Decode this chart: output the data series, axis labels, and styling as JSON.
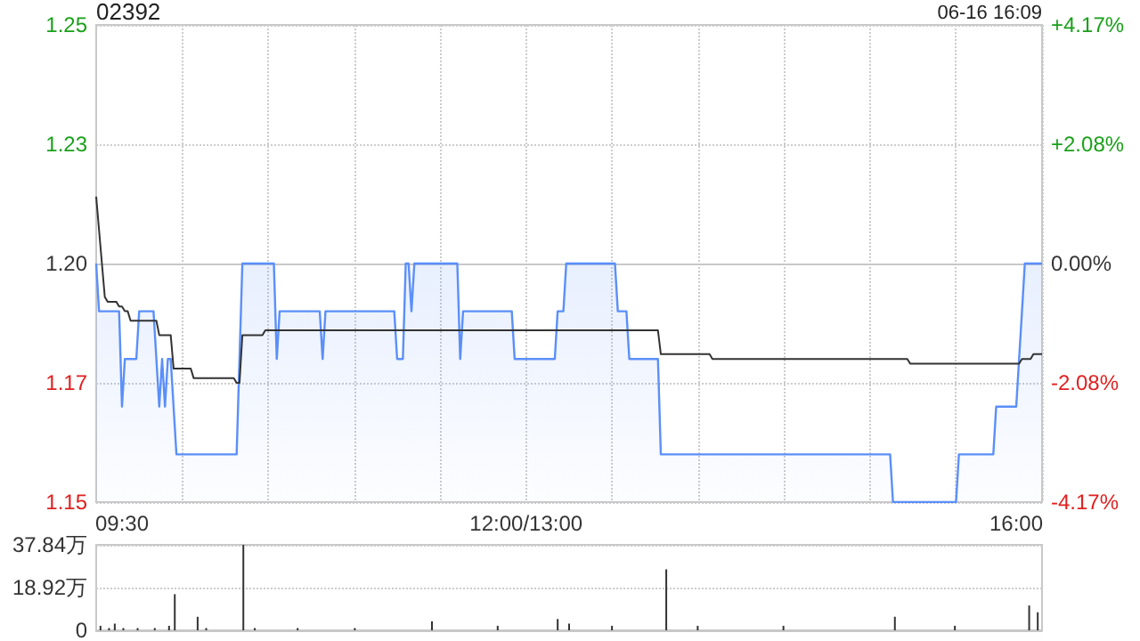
{
  "chart_data": [
    {
      "type": "area",
      "title": "02392",
      "annotations": [
        "06-16 16:09"
      ],
      "categories": [
        null,
        null,
        null,
        null,
        null,
        null,
        null,
        null,
        null,
        "09:30",
        null,
        null,
        null,
        null,
        null,
        null,
        null,
        null,
        null,
        null,
        null,
        null,
        null,
        null,
        null,
        null,
        null,
        null,
        null,
        null,
        null,
        null,
        null,
        null,
        null,
        null,
        null,
        null,
        null,
        null,
        null,
        null,
        null,
        null,
        null,
        null,
        null,
        null,
        null,
        null,
        null,
        null,
        null,
        null,
        null,
        null,
        null,
        null,
        null,
        null,
        null,
        null,
        null,
        null,
        null,
        null,
        null,
        null,
        null,
        null,
        null,
        null,
        null,
        null,
        null,
        null,
        null,
        null,
        null,
        null,
        null,
        null,
        null,
        null,
        null,
        null,
        null,
        null,
        null,
        null,
        null,
        null,
        null,
        null,
        null,
        null,
        null,
        null,
        null,
        null,
        null,
        null,
        null,
        null,
        null,
        null,
        null,
        null,
        null,
        null,
        null,
        null,
        null,
        null,
        null,
        null,
        null,
        null,
        null,
        null,
        null,
        null,
        null,
        null,
        null,
        null,
        null,
        null,
        null,
        null,
        null,
        null,
        null,
        null,
        null,
        null,
        null,
        null,
        null,
        null,
        null,
        null,
        null,
        null,
        null,
        null,
        null,
        null,
        null,
        null,
        "12:00/13:00",
        null,
        null,
        null,
        null,
        null,
        null,
        null,
        null,
        null,
        null,
        null,
        null,
        null,
        null,
        null,
        null,
        null,
        null,
        null,
        null,
        null,
        null,
        null,
        null,
        null,
        null,
        null,
        null,
        null,
        null,
        null,
        null,
        null,
        null,
        null,
        null,
        null,
        null,
        null,
        null,
        null,
        null,
        null,
        null,
        null,
        null,
        null,
        null,
        null,
        null,
        null,
        null,
        null,
        null,
        null,
        null,
        null,
        null,
        null,
        null,
        null,
        null,
        null,
        null,
        null,
        null,
        null,
        null,
        null,
        null,
        null,
        null,
        null,
        null,
        null,
        null,
        null,
        null,
        null,
        null,
        null,
        null,
        null,
        null,
        null,
        null,
        null,
        null,
        null,
        null,
        null,
        null,
        null,
        null,
        null,
        null,
        null,
        null,
        null,
        null,
        null,
        null,
        null,
        null,
        null,
        null,
        null,
        null,
        null,
        null,
        null,
        null,
        null,
        null,
        null,
        null,
        null,
        null,
        null,
        null,
        null,
        null,
        null,
        null,
        null,
        null,
        null,
        null,
        null,
        null,
        null,
        null,
        null,
        null,
        null,
        null,
        null,
        null,
        null,
        null,
        null,
        null,
        null,
        null,
        null,
        null,
        null,
        null,
        null,
        null,
        null,
        null,
        null,
        null,
        null,
        null,
        null,
        null,
        null,
        null,
        null,
        null,
        null,
        null,
        null,
        null,
        null,
        null,
        null,
        null,
        "16:00",
        null,
        null,
        null,
        null,
        null,
        null,
        null,
        null,
        null
      ],
      "ylim": [
        1.15,
        1.25
      ],
      "yticks": [
        1.15,
        {
          "value": 1.175,
          "label": "1.17"
        },
        {
          "value": 1.2,
          "label": "1.20"
        },
        {
          "value": 1.225,
          "label": "1.23"
        },
        1.25
      ],
      "y2lim": [
        -4.17,
        4.17
      ],
      "y2ticks": [
        {
          "value": -4.17,
          "label": "-4.17%"
        },
        {
          "value": -2.08,
          "label": "-2.08%"
        },
        {
          "value": 0,
          "label": "0.00%"
        },
        {
          "value": 2.08,
          "label": "+2.08%"
        },
        {
          "value": 4.17,
          "label": "+4.17%"
        }
      ],
      "grid": true,
      "marker": "none",
      "series": [
        {
          "type": "area",
          "color": "#5b8ff9",
          "values": [
            1.2,
            1.19,
            1.19,
            1.19,
            1.19,
            1.19,
            1.19,
            1.19,
            1.19,
            1.17,
            1.18,
            1.18,
            1.18,
            1.18,
            1.18,
            1.19,
            1.19,
            1.19,
            1.19,
            1.19,
            1.19,
            1.18,
            1.17,
            1.18,
            1.17,
            1.18,
            1.18,
            1.17,
            1.16,
            1.16,
            1.16,
            1.16,
            1.16,
            1.16,
            1.16,
            1.16,
            1.16,
            1.16,
            1.16,
            1.16,
            1.16,
            1.16,
            1.16,
            1.16,
            1.16,
            1.16,
            1.16,
            1.16,
            1.16,
            1.16,
            1.18,
            1.2,
            1.2,
            1.2,
            1.2,
            1.2,
            1.2,
            1.2,
            1.2,
            1.2,
            1.2,
            1.2,
            1.2,
            1.18,
            1.19,
            1.19,
            1.19,
            1.19,
            1.19,
            1.19,
            1.19,
            1.19,
            1.19,
            1.19,
            1.19,
            1.19,
            1.19,
            1.19,
            1.19,
            1.18,
            1.19,
            1.19,
            1.19,
            1.19,
            1.19,
            1.19,
            1.19,
            1.19,
            1.19,
            1.19,
            1.19,
            1.19,
            1.19,
            1.19,
            1.19,
            1.19,
            1.19,
            1.19,
            1.19,
            1.19,
            1.19,
            1.19,
            1.19,
            1.19,
            1.19,
            1.18,
            1.18,
            1.18,
            1.2,
            1.2,
            1.19,
            1.2,
            1.2,
            1.2,
            1.2,
            1.2,
            1.2,
            1.2,
            1.2,
            1.2,
            1.2,
            1.2,
            1.2,
            1.2,
            1.2,
            1.2,
            1.2,
            1.18,
            1.19,
            1.19,
            1.19,
            1.19,
            1.19,
            1.19,
            1.19,
            1.19,
            1.19,
            1.19,
            1.19,
            1.19,
            1.19,
            1.19,
            1.19,
            1.19,
            1.19,
            1.19,
            1.18,
            1.18,
            1.18,
            1.18,
            1.18,
            1.18,
            1.18,
            1.18,
            1.18,
            1.18,
            1.18,
            1.18,
            1.18,
            1.18,
            1.18,
            1.19,
            1.19,
            1.19,
            1.2,
            1.2,
            1.2,
            1.2,
            1.2,
            1.2,
            1.2,
            1.2,
            1.2,
            1.2,
            1.2,
            1.2,
            1.2,
            1.2,
            1.2,
            1.2,
            1.2,
            1.2,
            1.19,
            1.19,
            1.19,
            1.19,
            1.18,
            1.18,
            1.18,
            1.18,
            1.18,
            1.18,
            1.18,
            1.18,
            1.18,
            1.18,
            1.18,
            1.16,
            1.16,
            1.16,
            1.16,
            1.16,
            1.16,
            1.16,
            1.16,
            1.16,
            1.16,
            1.16,
            1.16,
            1.16,
            1.16,
            1.16,
            1.16,
            1.16,
            1.16,
            1.16,
            1.16,
            1.16,
            1.16,
            1.16,
            1.16,
            1.16,
            1.16,
            1.16,
            1.16,
            1.16,
            1.16,
            1.16,
            1.16,
            1.16,
            1.16,
            1.16,
            1.16,
            1.16,
            1.16,
            1.16,
            1.16,
            1.16,
            1.16,
            1.16,
            1.16,
            1.16,
            1.16,
            1.16,
            1.16,
            1.16,
            1.16,
            1.16,
            1.16,
            1.16,
            1.16,
            1.16,
            1.16,
            1.16,
            1.16,
            1.16,
            1.16,
            1.16,
            1.16,
            1.16,
            1.16,
            1.16,
            1.16,
            1.16,
            1.16,
            1.16,
            1.16,
            1.16,
            1.16,
            1.16,
            1.16,
            1.16,
            1.16,
            1.16,
            1.16,
            1.16,
            1.16,
            1.16,
            1.15,
            1.15,
            1.15,
            1.15,
            1.15,
            1.15,
            1.15,
            1.15,
            1.15,
            1.15,
            1.15,
            1.15,
            1.15,
            1.15,
            1.15,
            1.15,
            1.15,
            1.15,
            1.15,
            1.15,
            1.15,
            1.15,
            1.15,
            1.16,
            1.16,
            1.16,
            1.16,
            1.16,
            1.16,
            1.16,
            1.16,
            1.16,
            1.16,
            1.16,
            1.16,
            1.16,
            1.17,
            1.17,
            1.17,
            1.17,
            1.17,
            1.17,
            1.17,
            1.17,
            1.18,
            1.19,
            1.2,
            1.2,
            1.2,
            1.2,
            1.2,
            1.2,
            1.2
          ]
        },
        {
          "type": "line",
          "color": "#333333",
          "values": [
            1.214,
            1.207,
            1.2,
            1.193,
            1.192,
            1.192,
            1.192,
            1.192,
            1.191,
            1.191,
            1.19,
            1.19,
            1.188,
            1.188,
            1.188,
            1.188,
            1.188,
            1.188,
            1.188,
            1.188,
            1.188,
            1.188,
            1.185,
            1.185,
            1.185,
            1.185,
            1.185,
            1.178,
            1.178,
            1.178,
            1.178,
            1.178,
            1.178,
            1.178,
            1.176,
            1.176,
            1.176,
            1.176,
            1.176,
            1.176,
            1.176,
            1.176,
            1.176,
            1.176,
            1.176,
            1.176,
            1.176,
            1.176,
            1.176,
            1.175,
            1.175,
            1.185,
            1.185,
            1.185,
            1.185,
            1.185,
            1.185,
            1.185,
            1.185,
            1.186,
            1.186,
            1.186,
            1.186,
            1.186,
            1.186,
            1.186,
            1.186,
            1.186,
            1.186,
            1.186,
            1.186,
            1.186,
            1.186,
            1.186,
            1.186,
            1.186,
            1.186,
            1.186,
            1.186,
            1.186,
            1.186,
            1.186,
            1.186,
            1.186,
            1.186,
            1.186,
            1.186,
            1.186,
            1.186,
            1.186,
            1.186,
            1.186,
            1.186,
            1.186,
            1.186,
            1.186,
            1.186,
            1.186,
            1.186,
            1.186,
            1.186,
            1.186,
            1.186,
            1.186,
            1.186,
            1.186,
            1.186,
            1.186,
            1.186,
            1.186,
            1.186,
            1.186,
            1.186,
            1.186,
            1.186,
            1.186,
            1.186,
            1.186,
            1.186,
            1.186,
            1.186,
            1.186,
            1.186,
            1.186,
            1.186,
            1.186,
            1.186,
            1.186,
            1.186,
            1.186,
            1.186,
            1.186,
            1.186,
            1.186,
            1.186,
            1.186,
            1.186,
            1.186,
            1.186,
            1.186,
            1.186,
            1.186,
            1.186,
            1.186,
            1.186,
            1.186,
            1.186,
            1.186,
            1.186,
            1.186,
            1.186,
            1.186,
            1.186,
            1.186,
            1.186,
            1.186,
            1.186,
            1.186,
            1.186,
            1.186,
            1.186,
            1.186,
            1.186,
            1.186,
            1.186,
            1.186,
            1.186,
            1.186,
            1.186,
            1.186,
            1.186,
            1.186,
            1.186,
            1.186,
            1.186,
            1.186,
            1.186,
            1.186,
            1.186,
            1.186,
            1.186,
            1.186,
            1.186,
            1.186,
            1.186,
            1.186,
            1.186,
            1.186,
            1.186,
            1.186,
            1.186,
            1.186,
            1.186,
            1.186,
            1.186,
            1.186,
            1.186,
            1.181,
            1.181,
            1.181,
            1.181,
            1.181,
            1.181,
            1.181,
            1.181,
            1.181,
            1.181,
            1.181,
            1.181,
            1.181,
            1.181,
            1.181,
            1.181,
            1.181,
            1.181,
            1.18,
            1.18,
            1.18,
            1.18,
            1.18,
            1.18,
            1.18,
            1.18,
            1.18,
            1.18,
            1.18,
            1.18,
            1.18,
            1.18,
            1.18,
            1.18,
            1.18,
            1.18,
            1.18,
            1.18,
            1.18,
            1.18,
            1.18,
            1.18,
            1.18,
            1.18,
            1.18,
            1.18,
            1.18,
            1.18,
            1.18,
            1.18,
            1.18,
            1.18,
            1.18,
            1.18,
            1.18,
            1.18,
            1.18,
            1.18,
            1.18,
            1.18,
            1.18,
            1.18,
            1.18,
            1.18,
            1.18,
            1.18,
            1.18,
            1.18,
            1.18,
            1.18,
            1.18,
            1.18,
            1.18,
            1.18,
            1.18,
            1.18,
            1.18,
            1.18,
            1.18,
            1.18,
            1.18,
            1.18,
            1.18,
            1.18,
            1.18,
            1.18,
            1.18,
            1.179,
            1.179,
            1.179,
            1.179,
            1.179,
            1.179,
            1.179,
            1.179,
            1.179,
            1.179,
            1.179,
            1.179,
            1.179,
            1.179,
            1.179,
            1.179,
            1.179,
            1.179,
            1.179,
            1.179,
            1.179,
            1.179,
            1.179,
            1.179,
            1.179,
            1.179,
            1.179,
            1.179,
            1.179,
            1.179,
            1.179,
            1.179,
            1.179,
            1.179,
            1.179,
            1.179,
            1.179,
            1.179,
            1.179,
            1.18,
            1.18,
            1.18,
            1.18,
            1.181,
            1.181,
            1.181,
            1.181
          ]
        }
      ]
    },
    {
      "type": "bar",
      "categories": [
        null,
        null,
        null,
        null,
        null,
        null,
        null,
        null,
        null,
        null,
        null,
        null,
        null,
        null,
        null,
        null,
        null,
        null,
        null,
        null,
        null,
        null,
        null,
        null,
        null,
        null,
        null,
        null,
        null,
        null,
        null,
        null,
        null,
        null,
        null,
        null,
        null,
        null,
        null,
        null,
        null,
        null,
        null,
        null,
        null,
        null,
        null,
        null,
        null,
        null,
        null,
        null,
        null,
        null,
        null,
        null,
        null,
        null,
        null,
        null,
        null,
        null,
        null,
        null,
        null,
        null,
        null,
        null,
        null,
        null,
        null,
        null,
        null,
        null,
        null,
        null,
        null,
        null,
        null,
        null,
        null,
        null,
        null,
        null,
        null,
        null,
        null,
        null,
        null,
        null,
        null,
        null,
        null,
        null,
        null,
        null,
        null,
        null,
        null,
        null,
        null,
        null,
        null,
        null,
        null,
        null,
        null,
        null,
        null,
        null,
        null,
        null,
        null,
        null,
        null,
        null,
        null,
        null,
        null,
        null,
        null,
        null,
        null,
        null,
        null,
        null,
        null,
        null,
        null,
        null,
        null,
        null,
        null,
        null,
        null,
        null,
        null,
        null,
        null,
        null,
        null,
        null,
        null,
        null,
        null,
        null,
        null,
        null,
        null,
        null,
        null,
        null,
        null,
        null,
        null,
        null,
        null,
        null,
        null,
        null,
        null,
        null,
        null,
        null,
        null,
        null,
        null,
        null,
        null,
        null,
        null,
        null,
        null,
        null,
        null,
        null,
        null,
        null,
        null,
        null,
        null,
        null,
        null,
        null,
        null,
        null,
        null,
        null,
        null,
        null,
        null,
        null,
        null,
        null,
        null,
        null,
        null,
        null,
        null,
        null,
        null,
        null,
        null,
        null,
        null,
        null,
        null,
        null,
        null,
        null,
        null,
        null,
        null,
        null,
        null,
        null,
        null,
        null,
        null,
        null,
        null,
        null,
        null,
        null,
        null,
        null,
        null,
        null,
        null,
        null,
        null,
        null,
        null,
        null,
        null,
        null,
        null,
        null,
        null,
        null,
        null,
        null,
        null,
        null,
        null,
        null,
        null,
        null,
        null,
        null,
        null,
        null,
        null,
        null,
        null,
        null,
        null,
        null,
        null,
        null,
        null,
        null,
        null,
        null,
        null,
        null,
        null,
        null,
        null,
        null,
        null,
        null,
        null,
        null,
        null,
        null,
        null,
        null,
        null,
        null,
        null,
        null,
        null,
        null,
        null,
        null,
        null,
        null,
        null,
        null,
        null,
        null,
        null,
        null,
        null,
        null,
        null,
        null,
        null,
        null,
        null,
        null,
        null,
        null,
        null,
        null,
        null,
        null,
        null,
        null,
        null,
        null,
        null,
        null,
        null,
        null,
        null,
        null,
        null,
        null,
        null,
        null,
        null,
        null,
        null,
        null,
        null,
        null,
        null,
        null,
        null
      ],
      "ylim": [
        0,
        37.84
      ],
      "yticks": [
        0,
        {
          "value": 18.92,
          "label": "18.92万"
        },
        {
          "value": 37.84,
          "label": "37.84万"
        }
      ],
      "grid": "y",
      "series": [
        {
          "type": "bar",
          "color": "#333333",
          "values": [
            0,
            2,
            0,
            0,
            1,
            0,
            3,
            0,
            0,
            1,
            0,
            0,
            0,
            0,
            1,
            0,
            0,
            0,
            0,
            0,
            1,
            0,
            0,
            0,
            0,
            2,
            0,
            16,
            0,
            0,
            0,
            0,
            0,
            0,
            0,
            6,
            0,
            0,
            1,
            0,
            0,
            0,
            0,
            0,
            0,
            0,
            0,
            0,
            0,
            0,
            0,
            37.84,
            0,
            0,
            0,
            1,
            0,
            0,
            0,
            0,
            0,
            0,
            0,
            0,
            0,
            0,
            0,
            0,
            0,
            0,
            1,
            0,
            0,
            0,
            0,
            0,
            0,
            0,
            0,
            0,
            0,
            0,
            0,
            0,
            0,
            0,
            0,
            0,
            0,
            0,
            1,
            0,
            0,
            0,
            0,
            0,
            0,
            0,
            0,
            0,
            0,
            0,
            0,
            0,
            0,
            0,
            0,
            0,
            0,
            0,
            0,
            0,
            0,
            0,
            0,
            0,
            0,
            4,
            0,
            0,
            0,
            0,
            0,
            0,
            0,
            0,
            0,
            0,
            0,
            0,
            0,
            0,
            0,
            0,
            0,
            0,
            0,
            0,
            0,
            0,
            2,
            0,
            0,
            0,
            0,
            0,
            0,
            0,
            0,
            0,
            0,
            0,
            0,
            0,
            0,
            0,
            0,
            0,
            0,
            0,
            0,
            5,
            0,
            0,
            0,
            3,
            0,
            0,
            0,
            0,
            0,
            0,
            0,
            0,
            0,
            0,
            0,
            0,
            0,
            0,
            2,
            0,
            0,
            0,
            0,
            0,
            0,
            0,
            0,
            0,
            0,
            0,
            0,
            0,
            0,
            0,
            0,
            0,
            0,
            27,
            0,
            0,
            0,
            0,
            0,
            0,
            0,
            0,
            0,
            0,
            2,
            0,
            0,
            0,
            0,
            0,
            0,
            0,
            0,
            0,
            0,
            0,
            0,
            0,
            0,
            0,
            0,
            0,
            0,
            0,
            0,
            0,
            0,
            0,
            0,
            0,
            0,
            0,
            0,
            0,
            2,
            0,
            0,
            0,
            0,
            0,
            0,
            0,
            0,
            0,
            0,
            0,
            0,
            0,
            0,
            0,
            0,
            0,
            0,
            0,
            0,
            0,
            0,
            0,
            0,
            0,
            0,
            0,
            0,
            0,
            0,
            0,
            0,
            0,
            0,
            0,
            0,
            0,
            0,
            6,
            0,
            0,
            0,
            0,
            0,
            0,
            0,
            0,
            0,
            0,
            0,
            0,
            0,
            0,
            0,
            0,
            0,
            0,
            0,
            0,
            2,
            0,
            0,
            0,
            0,
            0,
            0,
            0,
            0,
            0,
            0,
            0,
            0,
            0,
            0,
            0,
            0,
            0,
            0,
            0,
            0,
            0,
            0,
            0,
            0,
            0,
            11,
            0,
            0,
            8,
            0
          ]
        }
      ]
    }
  ]
}
